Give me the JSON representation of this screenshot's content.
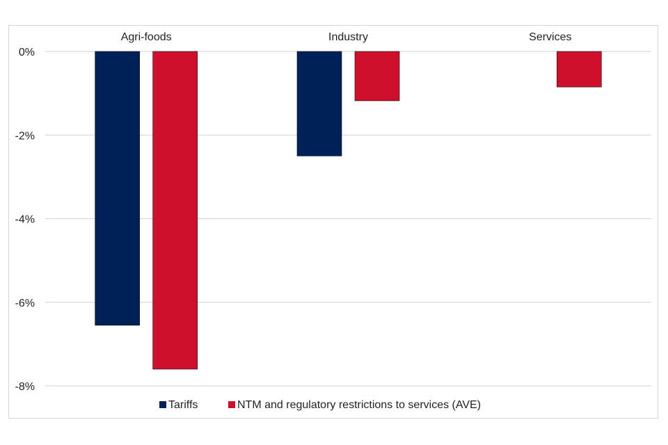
{
  "chart_data": {
    "type": "bar",
    "title": "",
    "xlabel": "",
    "ylabel": "",
    "categories": [
      "Agri-foods",
      "Industry",
      "Services"
    ],
    "series": [
      {
        "name": "Tariffs",
        "color": "#002157",
        "values": [
          -6.55,
          -2.5,
          null
        ]
      },
      {
        "name": "NTM and regulatory restrictions to services (AVE)",
        "color": "#cf102d",
        "values": [
          -7.6,
          -1.18,
          -0.85
        ]
      }
    ],
    "ylim": [
      -8,
      0
    ],
    "yticks": [
      0,
      -2,
      -4,
      -6,
      -8
    ],
    "ytick_labels": [
      "0%",
      "-2%",
      "-4%",
      "-6%",
      "-8%"
    ],
    "category_labels_position": "top",
    "grid": true,
    "legend": "bottom"
  }
}
